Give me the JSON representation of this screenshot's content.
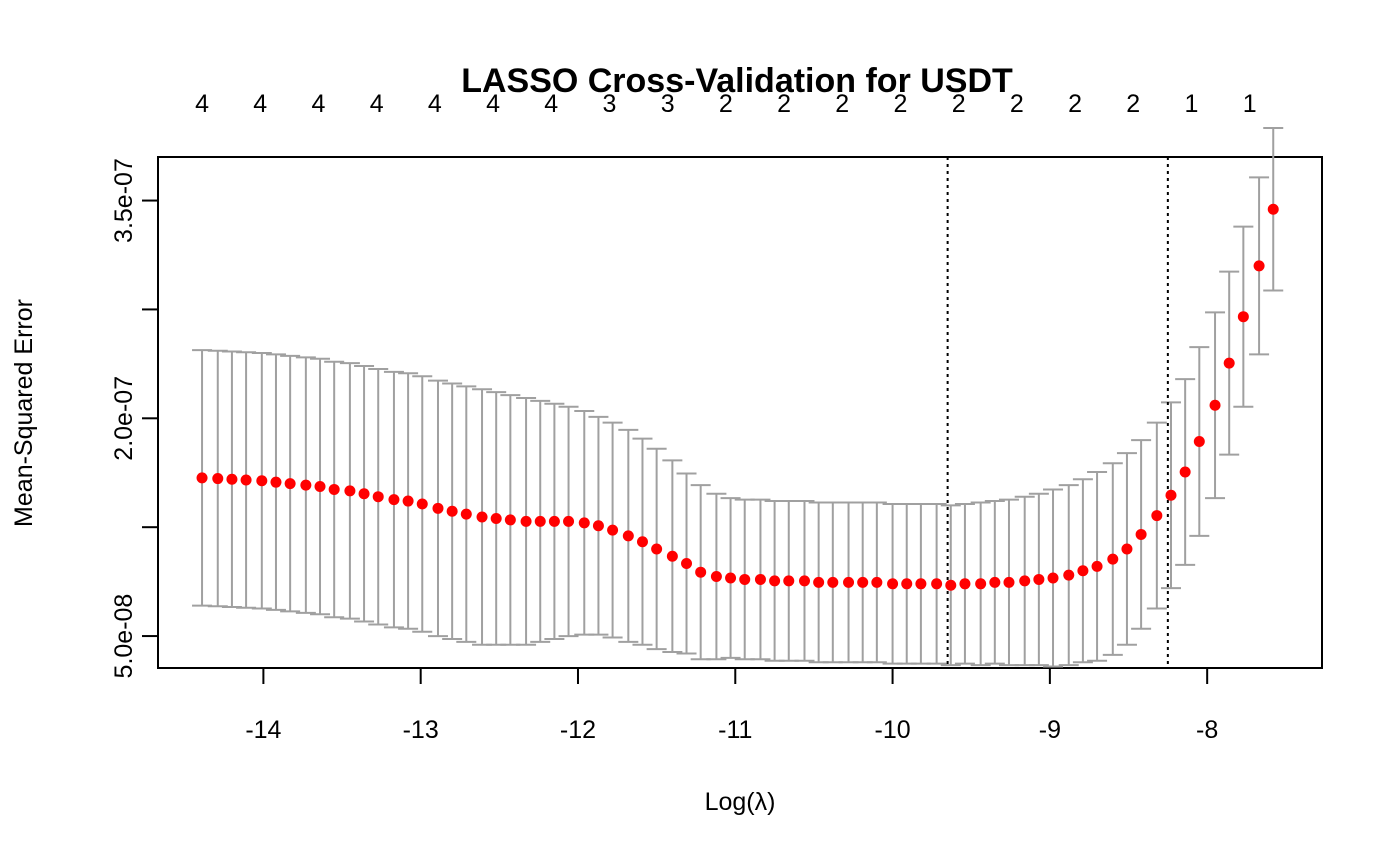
{
  "chart_data": {
    "type": "scatter",
    "title": "LASSO Cross-Validation for USDT",
    "xlabel": "Log(λ)",
    "ylabel": "Mean-Squared Error",
    "xlim": [
      -14.67,
      -7.27
    ],
    "ylim": [
      2.8e-08,
      3.8e-07
    ],
    "x_ticks": [
      -14,
      -13,
      -12,
      -11,
      -10,
      -9,
      -8
    ],
    "x_tick_labels": [
      "-14",
      "-13",
      "-12",
      "-11",
      "-10",
      "-9",
      "-8"
    ],
    "y_ticks": [
      5e-08,
      1.25e-07,
      2e-07,
      2.75e-07,
      3.5e-07
    ],
    "y_tick_labels": [
      "5.0e-08",
      "",
      "2.0e-07",
      "",
      "3.5e-07"
    ],
    "top_axis": {
      "x": [
        -14.39,
        -14.02,
        -13.65,
        -13.28,
        -12.91,
        -12.54,
        -12.17,
        -11.8,
        -11.43,
        -11.06,
        -10.69,
        -10.32,
        -9.95,
        -9.58,
        -9.21,
        -8.84,
        -8.47,
        -8.1,
        -7.73
      ],
      "labels": [
        "4",
        "4",
        "4",
        "4",
        "4",
        "4",
        "4",
        "3",
        "3",
        "2",
        "2",
        "2",
        "2",
        "2",
        "2",
        "2",
        "2",
        "1",
        "1"
      ]
    },
    "vlines": [
      -9.65,
      -8.25
    ],
    "series": [
      {
        "x": [
          -14.39,
          -14.29,
          -14.2,
          -14.11,
          -14.01,
          -13.92,
          -13.83,
          -13.73,
          -13.64,
          -13.55,
          -13.45,
          -13.36,
          -13.27,
          -13.17,
          -13.08,
          -12.99,
          -12.89,
          -12.8,
          -12.71,
          -12.61,
          -12.52,
          -12.43,
          -12.33,
          -12.24,
          -12.15,
          -12.06,
          -11.96,
          -11.87,
          -11.78,
          -11.68,
          -11.59,
          -11.5,
          -11.4,
          -11.31,
          -11.22,
          -11.12,
          -11.03,
          -10.94,
          -10.84,
          -10.75,
          -10.66,
          -10.56,
          -10.47,
          -10.38,
          -10.28,
          -10.19,
          -10.1,
          -10.0,
          -9.91,
          -9.82,
          -9.72,
          -9.63,
          -9.54,
          -9.44,
          -9.35,
          -9.26,
          -9.16,
          -9.07,
          -8.98,
          -8.88,
          -8.79,
          -8.7,
          -8.6,
          -8.51,
          -8.42,
          -8.32,
          -8.23,
          -8.14,
          -8.05,
          -7.95,
          -7.86,
          -7.77,
          -7.67,
          -7.58
        ],
        "y": [
          1.59e-07,
          1.585e-07,
          1.58e-07,
          1.575e-07,
          1.57e-07,
          1.56e-07,
          1.55e-07,
          1.54e-07,
          1.53e-07,
          1.51e-07,
          1.5e-07,
          1.48e-07,
          1.46e-07,
          1.44e-07,
          1.43e-07,
          1.41e-07,
          1.38e-07,
          1.36e-07,
          1.34e-07,
          1.32e-07,
          1.31e-07,
          1.3e-07,
          1.29e-07,
          1.29e-07,
          1.29e-07,
          1.29e-07,
          1.28e-07,
          1.26e-07,
          1.23e-07,
          1.19e-07,
          1.15e-07,
          1.1e-07,
          1.05e-07,
          1e-07,
          9.4e-08,
          9.1e-08,
          9e-08,
          8.9e-08,
          8.9e-08,
          8.8e-08,
          8.8e-08,
          8.8e-08,
          8.7e-08,
          8.7e-08,
          8.7e-08,
          8.7e-08,
          8.7e-08,
          8.6e-08,
          8.6e-08,
          8.6e-08,
          8.6e-08,
          8.5e-08,
          8.6e-08,
          8.6e-08,
          8.7e-08,
          8.7e-08,
          8.8e-08,
          8.9e-08,
          9e-08,
          9.2e-08,
          9.5e-08,
          9.8e-08,
          1.03e-07,
          1.1e-07,
          1.2e-07,
          1.33e-07,
          1.47e-07,
          1.63e-07,
          1.84e-07,
          2.09e-07,
          2.38e-07,
          2.7e-07,
          3.05e-07,
          3.44e-07
        ],
        "upper": [
          2.47e-07,
          2.465e-07,
          2.46e-07,
          2.455e-07,
          2.45e-07,
          2.44e-07,
          2.43e-07,
          2.42e-07,
          2.41e-07,
          2.39e-07,
          2.38e-07,
          2.36e-07,
          2.34e-07,
          2.32e-07,
          2.31e-07,
          2.29e-07,
          2.26e-07,
          2.24e-07,
          2.22e-07,
          2.2e-07,
          2.18e-07,
          2.16e-07,
          2.14e-07,
          2.12e-07,
          2.1e-07,
          2.08e-07,
          2.05e-07,
          2.01e-07,
          1.97e-07,
          1.92e-07,
          1.86e-07,
          1.79e-07,
          1.71e-07,
          1.62e-07,
          1.54e-07,
          1.48e-07,
          1.45e-07,
          1.44e-07,
          1.44e-07,
          1.43e-07,
          1.43e-07,
          1.43e-07,
          1.42e-07,
          1.42e-07,
          1.42e-07,
          1.42e-07,
          1.42e-07,
          1.41e-07,
          1.41e-07,
          1.41e-07,
          1.41e-07,
          1.4e-07,
          1.41e-07,
          1.42e-07,
          1.43e-07,
          1.44e-07,
          1.46e-07,
          1.48e-07,
          1.51e-07,
          1.54e-07,
          1.58e-07,
          1.63e-07,
          1.69e-07,
          1.76e-07,
          1.85e-07,
          1.97e-07,
          2.11e-07,
          2.27e-07,
          2.49e-07,
          2.73e-07,
          3.01e-07,
          3.32e-07,
          3.66e-07,
          4e-07
        ],
        "lower": [
          7.1e-08,
          7.05e-08,
          7e-08,
          6.95e-08,
          6.9e-08,
          6.8e-08,
          6.7e-08,
          6.6e-08,
          6.5e-08,
          6.3e-08,
          6.2e-08,
          6e-08,
          5.8e-08,
          5.6e-08,
          5.5e-08,
          5.3e-08,
          5e-08,
          4.8e-08,
          4.6e-08,
          4.4e-08,
          4.4e-08,
          4.4e-08,
          4.4e-08,
          4.6e-08,
          4.8e-08,
          5e-08,
          5.1e-08,
          5.1e-08,
          4.9e-08,
          4.6e-08,
          4.4e-08,
          4.1e-08,
          3.9e-08,
          3.8e-08,
          3.4e-08,
          3.4e-08,
          3.5e-08,
          3.4e-08,
          3.4e-08,
          3.3e-08,
          3.3e-08,
          3.3e-08,
          3.2e-08,
          3.2e-08,
          3.2e-08,
          3.2e-08,
          3.2e-08,
          3.1e-08,
          3.1e-08,
          3.1e-08,
          3.1e-08,
          3e-08,
          3.1e-08,
          3e-08,
          3.1e-08,
          3e-08,
          3e-08,
          3e-08,
          2.9e-08,
          3e-08,
          3.2e-08,
          3.3e-08,
          3.7e-08,
          4.4e-08,
          5.5e-08,
          6.9e-08,
          8.3e-08,
          9.9e-08,
          1.19e-07,
          1.45e-07,
          1.75e-07,
          2.08e-07,
          2.44e-07,
          2.88e-07
        ]
      }
    ],
    "colors": {
      "points": "#ff0000",
      "errorbars": "#a0a0a0",
      "axes": "#000000",
      "vlines": "#000000"
    }
  }
}
